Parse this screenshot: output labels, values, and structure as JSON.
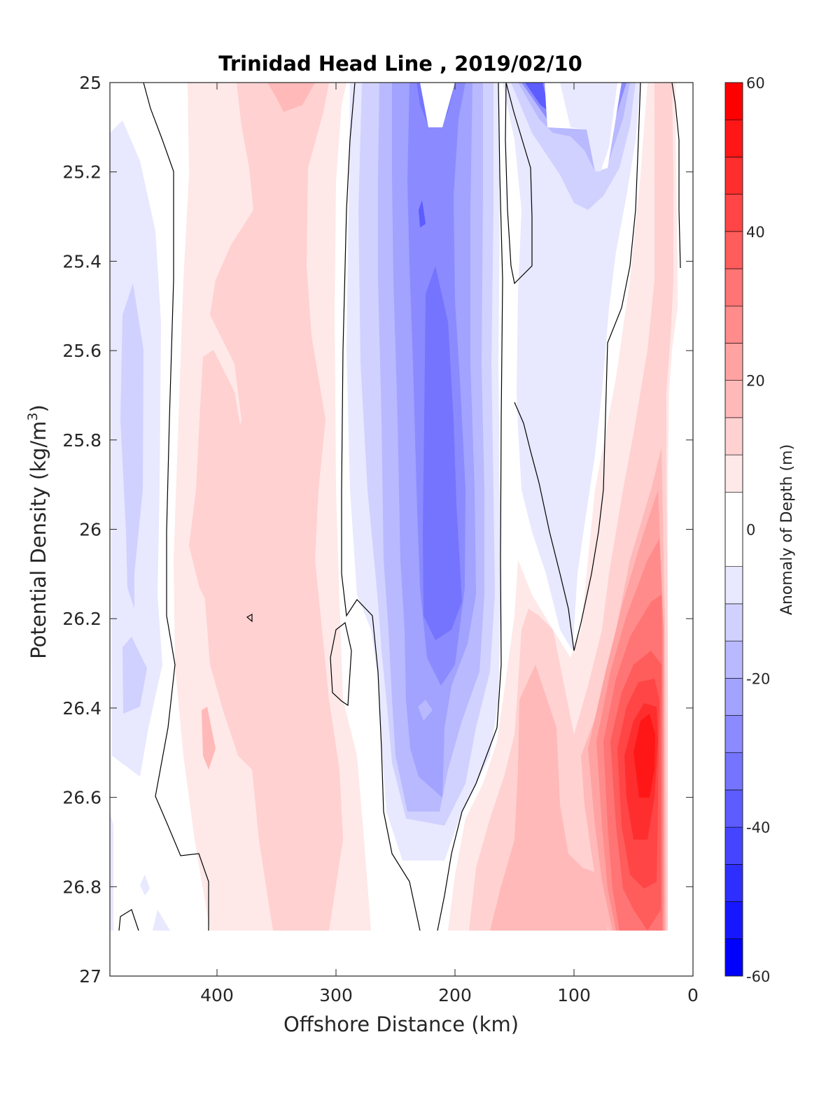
{
  "chart_data": {
    "type": "contour",
    "title": "Trinidad Head Line , 2019/02/10",
    "xlabel": "Offshore Distance (km)",
    "ylabel_main": "Potential Density (kg/m",
    "ylabel_sup": "3",
    "ylabel_close": ")",
    "xlim": [
      490,
      0
    ],
    "ylim": [
      25,
      27
    ],
    "y_reversed": true,
    "x_reversed": true,
    "xticks": [
      400,
      300,
      200,
      100,
      0
    ],
    "xtick_labels": [
      "400",
      "300",
      "200",
      "100",
      "0"
    ],
    "yticks": [
      25,
      25.2,
      25.4,
      25.6,
      25.8,
      26,
      26.2,
      26.4,
      26.6,
      26.8,
      27
    ],
    "ytick_labels": [
      "25",
      "25.2",
      "25.4",
      "25.6",
      "25.8",
      "26",
      "26.2",
      "26.4",
      "26.6",
      "26.8",
      "27"
    ],
    "colorbar": {
      "label": "Anomaly of Depth (m)",
      "clim": [
        -60,
        60
      ],
      "ticks": [
        60,
        40,
        20,
        0,
        -20,
        -40,
        -60
      ],
      "tick_labels": [
        "60",
        "40",
        "20",
        "0",
        "-20",
        "-40",
        "-60"
      ],
      "levels": [
        -60,
        -55,
        -50,
        -45,
        -40,
        -35,
        -30,
        -25,
        -20,
        -15,
        -10,
        -5,
        5,
        10,
        15,
        20,
        25,
        30,
        35,
        40,
        45,
        50,
        55,
        60
      ],
      "colors": [
        "#0000ff",
        "#1717ff",
        "#2e2eff",
        "#4545ff",
        "#5c5cff",
        "#7474ff",
        "#8b8bff",
        "#a2a2ff",
        "#b9b9ff",
        "#d1d1ff",
        "#e8e8ff",
        "#ffffff",
        "#ffe8e8",
        "#ffd1d1",
        "#ffb9b9",
        "#ffa2a2",
        "#ff8b8b",
        "#ff7474",
        "#ff5c5c",
        "#ff4545",
        "#ff2e2e",
        "#ff1717",
        "#ff0000"
      ]
    },
    "zero_contour_color": "#000000",
    "data_coverage": {
      "x_range": [
        485,
        20
      ],
      "y_range": [
        25,
        26.9
      ]
    },
    "anomaly_features": [
      {
        "sign": "negative",
        "x_center": 470,
        "y_range": [
          25.1,
          26.5
        ],
        "peak": -12
      },
      {
        "sign": "positive",
        "x_center": 340,
        "y_range": [
          25,
          26.9
        ],
        "peak": 12
      },
      {
        "sign": "negative",
        "x_center": 210,
        "y_range": [
          25,
          26.7
        ],
        "peak": -30
      },
      {
        "sign": "negative",
        "x_center": 120,
        "y_range": [
          25,
          26.2
        ],
        "peak": -10
      },
      {
        "sign": "positive",
        "x_center": 40,
        "y_range": [
          25,
          26.9
        ],
        "peak": 52
      }
    ]
  }
}
